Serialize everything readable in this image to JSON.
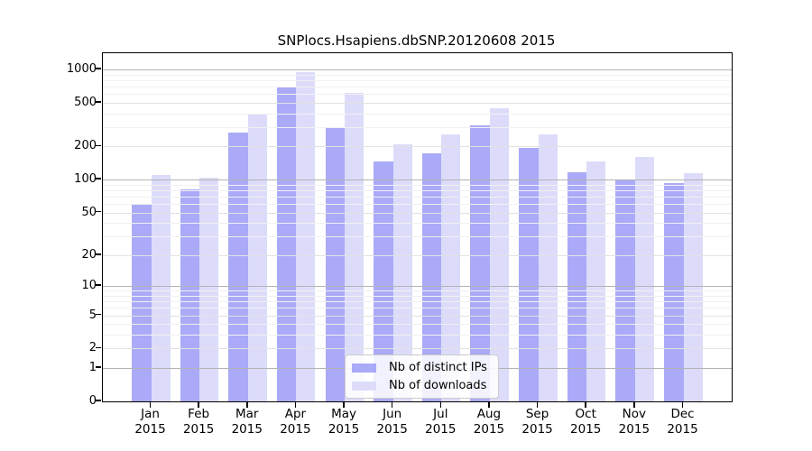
{
  "chart_data": {
    "type": "bar",
    "title": "SNPlocs.Hsapiens.dbSNP.20120608 2015",
    "scale": "log1p",
    "xlabel": "",
    "ylabel": "",
    "year": "2015",
    "categories": [
      "Jan",
      "Feb",
      "Mar",
      "Apr",
      "May",
      "Jun",
      "Jul",
      "Aug",
      "Sep",
      "Oct",
      "Nov",
      "Dec"
    ],
    "series": [
      {
        "name": "Nb of distinct IPs",
        "color": "#aaaaf8",
        "values": [
          59,
          81,
          269,
          699,
          299,
          147,
          174,
          310,
          193,
          117,
          100,
          93
        ]
      },
      {
        "name": "Nb of downloads",
        "color": "#dcdcfa",
        "values": [
          111,
          105,
          394,
          950,
          610,
          209,
          257,
          443,
          259,
          145,
          160,
          115
        ]
      }
    ],
    "yticks": [
      0,
      1,
      2,
      5,
      10,
      20,
      50,
      100,
      200,
      500,
      1000
    ],
    "yticks_minor": [
      3,
      4,
      6,
      7,
      8,
      9,
      30,
      40,
      60,
      70,
      80,
      90,
      300,
      400,
      600,
      700,
      800,
      900
    ],
    "ylim": [
      0,
      1400
    ],
    "grid": true,
    "legend_position": "lower-center"
  }
}
